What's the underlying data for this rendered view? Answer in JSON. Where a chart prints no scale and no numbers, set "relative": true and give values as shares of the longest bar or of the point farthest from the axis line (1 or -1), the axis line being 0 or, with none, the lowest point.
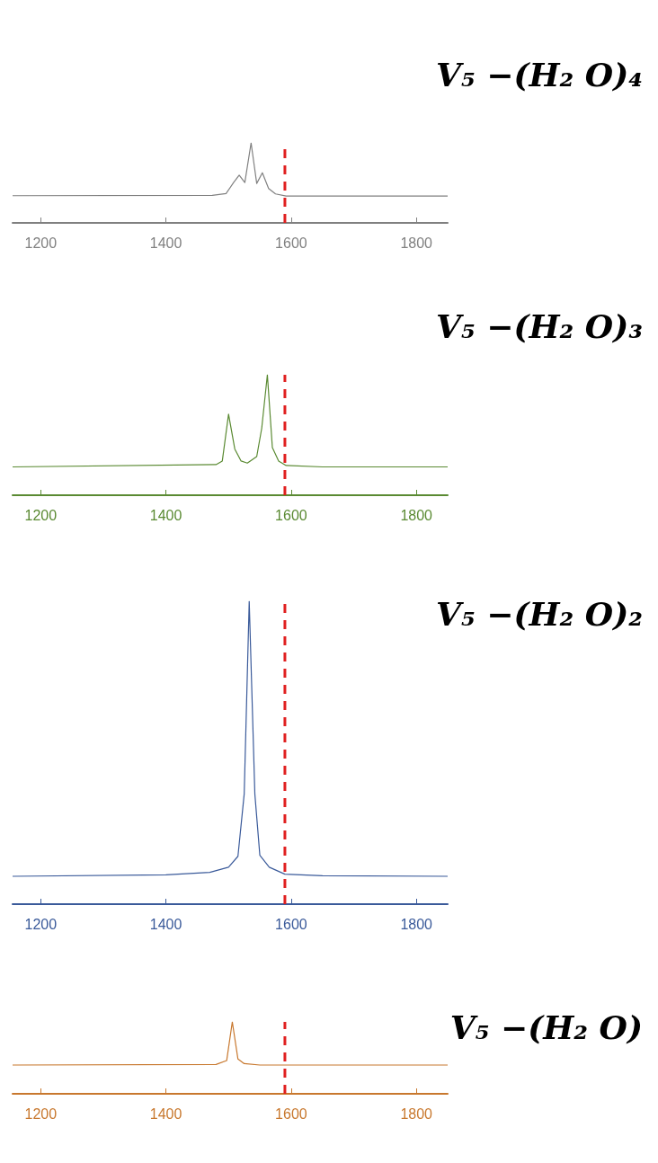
{
  "chart_data": [
    {
      "type": "line",
      "title": "V₅ −(H₂ O)₄",
      "relative": true,
      "xlim": [
        1155,
        1850
      ],
      "xticks": [
        1200,
        1400,
        1600,
        1800
      ],
      "grid": false,
      "ref_lines": [
        {
          "axis": "x",
          "value": 1590,
          "color": "#e02020",
          "line_style": "dashed"
        }
      ],
      "series": [
        {
          "color": "#808080",
          "x": [
            1155,
            1474,
            1496,
            1508,
            1517,
            1526,
            1536,
            1545,
            1554,
            1564,
            1575,
            1592,
            1850
          ],
          "values": [
            0.34,
            0.345,
            0.366,
            0.504,
            0.597,
            0.504,
            1,
            0.493,
            0.627,
            0.43,
            0.362,
            0.336,
            0.336
          ]
        }
      ]
    },
    {
      "type": "line",
      "title": "V₅ −(H₂ O)₃",
      "relative": true,
      "xlim": [
        1155,
        1850
      ],
      "xticks": [
        1200,
        1400,
        1600,
        1800
      ],
      "grid": false,
      "ref_lines": [
        {
          "axis": "x",
          "value": 1590,
          "color": "#e02020",
          "line_style": "dashed"
        }
      ],
      "series": [
        {
          "color": "#5a8a32",
          "x": [
            1155,
            1480,
            1490,
            1500,
            1510,
            1520,
            1530,
            1545,
            1553,
            1562,
            1570,
            1580,
            1592,
            1650,
            1850
          ],
          "values": [
            0.235,
            0.254,
            0.284,
            0.672,
            0.383,
            0.284,
            0.267,
            0.321,
            0.556,
            1,
            0.395,
            0.284,
            0.247,
            0.235,
            0.235
          ]
        }
      ]
    },
    {
      "type": "line",
      "title": "V₅ −(H₂ O)₂",
      "relative": true,
      "xlim": [
        1155,
        1850
      ],
      "xticks": [
        1200,
        1400,
        1600,
        1800
      ],
      "grid": false,
      "ref_lines": [
        {
          "axis": "x",
          "value": 1590,
          "color": "#e02020",
          "line_style": "dashed"
        }
      ],
      "series": [
        {
          "color": "#3a5a9a",
          "x": [
            1155,
            1400,
            1470,
            1500,
            1515,
            1525,
            1533,
            1542,
            1550,
            1565,
            1590,
            1650,
            1850
          ],
          "values": [
            0.092,
            0.097,
            0.105,
            0.122,
            0.158,
            0.364,
            1,
            0.364,
            0.161,
            0.122,
            0.099,
            0.094,
            0.092
          ]
        }
      ]
    },
    {
      "type": "line",
      "title": "V₅ −(H₂ O)",
      "relative": true,
      "xlim": [
        1155,
        1850
      ],
      "xticks": [
        1200,
        1400,
        1600,
        1800
      ],
      "grid": false,
      "ref_lines": [
        {
          "axis": "x",
          "value": 1590,
          "color": "#e02020",
          "line_style": "dashed"
        }
      ],
      "series": [
        {
          "color": "#c8782e",
          "x": [
            1155,
            1480,
            1497,
            1506,
            1515,
            1525,
            1550,
            1850
          ],
          "values": [
            0.4,
            0.408,
            0.462,
            1,
            0.483,
            0.42,
            0.4,
            0.4
          ]
        }
      ]
    }
  ]
}
